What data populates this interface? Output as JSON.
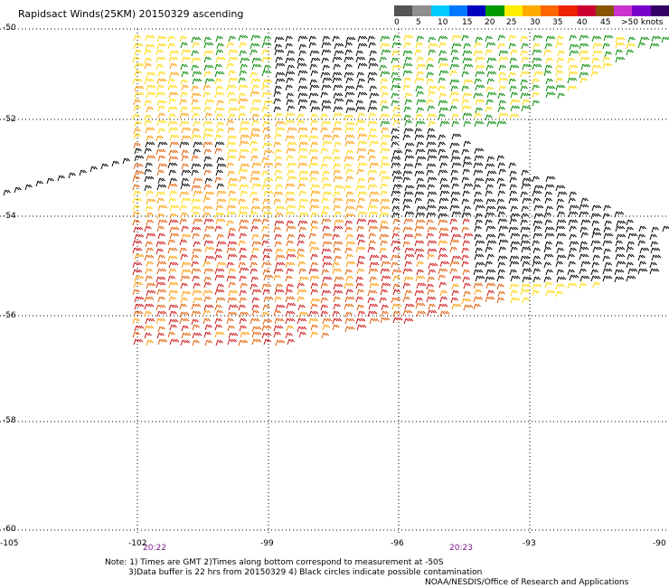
{
  "title": "Rapidsact Winds(25KM) 20150329 ascending",
  "legend": {
    "labels": [
      "0",
      "5",
      "10",
      "15",
      "20",
      "25",
      "30",
      "35",
      "40",
      "45",
      ">50 knots"
    ],
    "colors": [
      "#555555",
      "#8f8f8f",
      "#00ccff",
      "#0077ff",
      "#0000c0",
      "#009900",
      "#ffee00",
      "#ffaa00",
      "#ff6600",
      "#ee2200",
      "#cc0033",
      "#885500",
      "#cc33cc",
      "#7a00cc",
      "#330066"
    ]
  },
  "axes": {
    "lat_labels": [
      "-50",
      "-52",
      "-54",
      "-56",
      "-58",
      "-60"
    ],
    "lon_labels": [
      "-105",
      "-102",
      "-99",
      "-96",
      "-93",
      "-90"
    ]
  },
  "time_labels": [
    "20:22",
    "20:23"
  ],
  "notes": {
    "line1": "Note: 1) Times are GMT 2)Times along bottom correspond to measurement at -50S",
    "line2": "3)Data buffer is 22 hrs from 20150329 4) Black circles indicate possible contamination",
    "credit": "NOAA/NESDIS/Office of Research and Applications"
  },
  "colors": {
    "grid": "#000000",
    "wind_low": "#000000",
    "wind_green": "#008800",
    "wind_yellow": "#ffd700",
    "wind_orange": "#ff9900",
    "wind_dark_orange": "#e05a00",
    "wind_red": "#cc1111"
  }
}
